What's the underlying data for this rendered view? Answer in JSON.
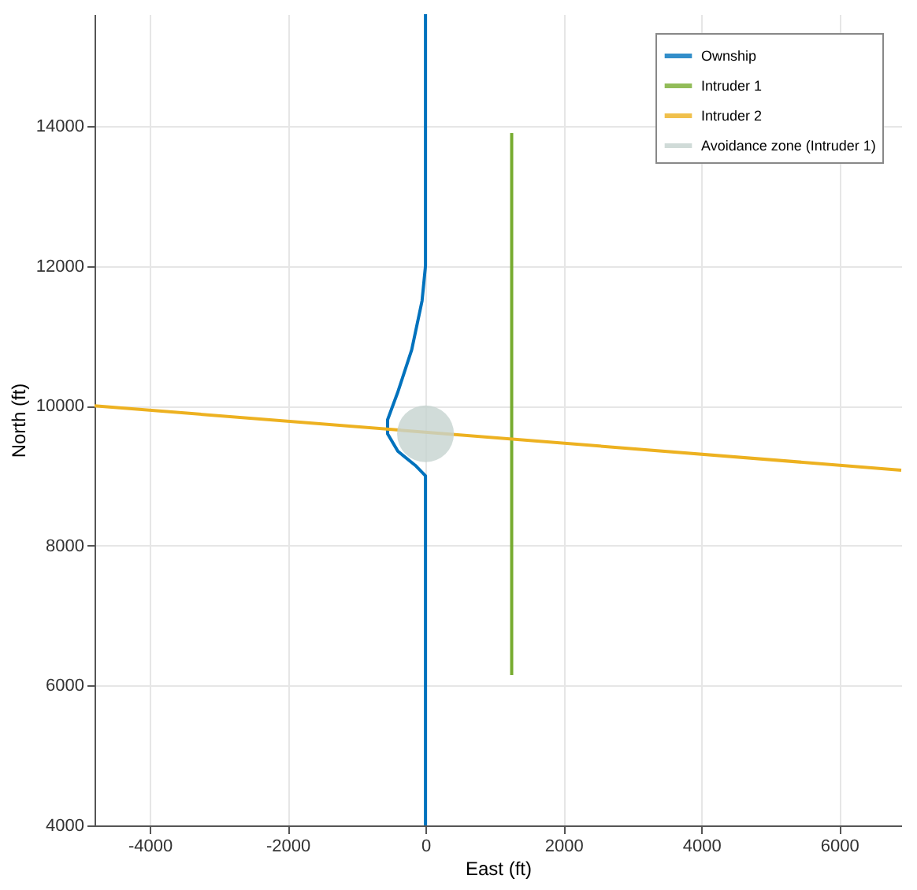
{
  "chart_data": {
    "type": "line",
    "xlabel": "East (ft)",
    "ylabel": "North (ft)",
    "xlim": [
      -4800,
      6900
    ],
    "ylim": [
      4000,
      15600
    ],
    "xticks": [
      -4000,
      -2000,
      0,
      2000,
      4000,
      6000
    ],
    "yticks": [
      4000,
      6000,
      8000,
      10000,
      12000,
      14000
    ],
    "grid": true,
    "legend": "top right",
    "line_style": "solid",
    "series": [
      {
        "name": "Ownship",
        "color": "#0072bd",
        "x": [
          0,
          0,
          -150,
          -400,
          -550,
          -550,
          -400,
          -200,
          -50,
          0,
          0
        ],
        "values": [
          4000,
          9000,
          9150,
          9350,
          9600,
          9800,
          10200,
          10800,
          11500,
          12000,
          15600
        ]
      },
      {
        "name": "Intruder 1",
        "color": "#77ac30",
        "x": [
          1250,
          1250
        ],
        "values": [
          6150,
          13900
        ]
      },
      {
        "name": "Intruder 2",
        "color": "#edb120",
        "x": [
          -4800,
          6900
        ],
        "values": [
          10000,
          9080
        ]
      },
      {
        "name": "Avoidance zone (Intruder 1)",
        "type": "bubble",
        "marker": "circle",
        "color": "#c5d3cf",
        "x": [
          0
        ],
        "values": [
          9600
        ],
        "sizes": [
          1
        ]
      }
    ]
  }
}
